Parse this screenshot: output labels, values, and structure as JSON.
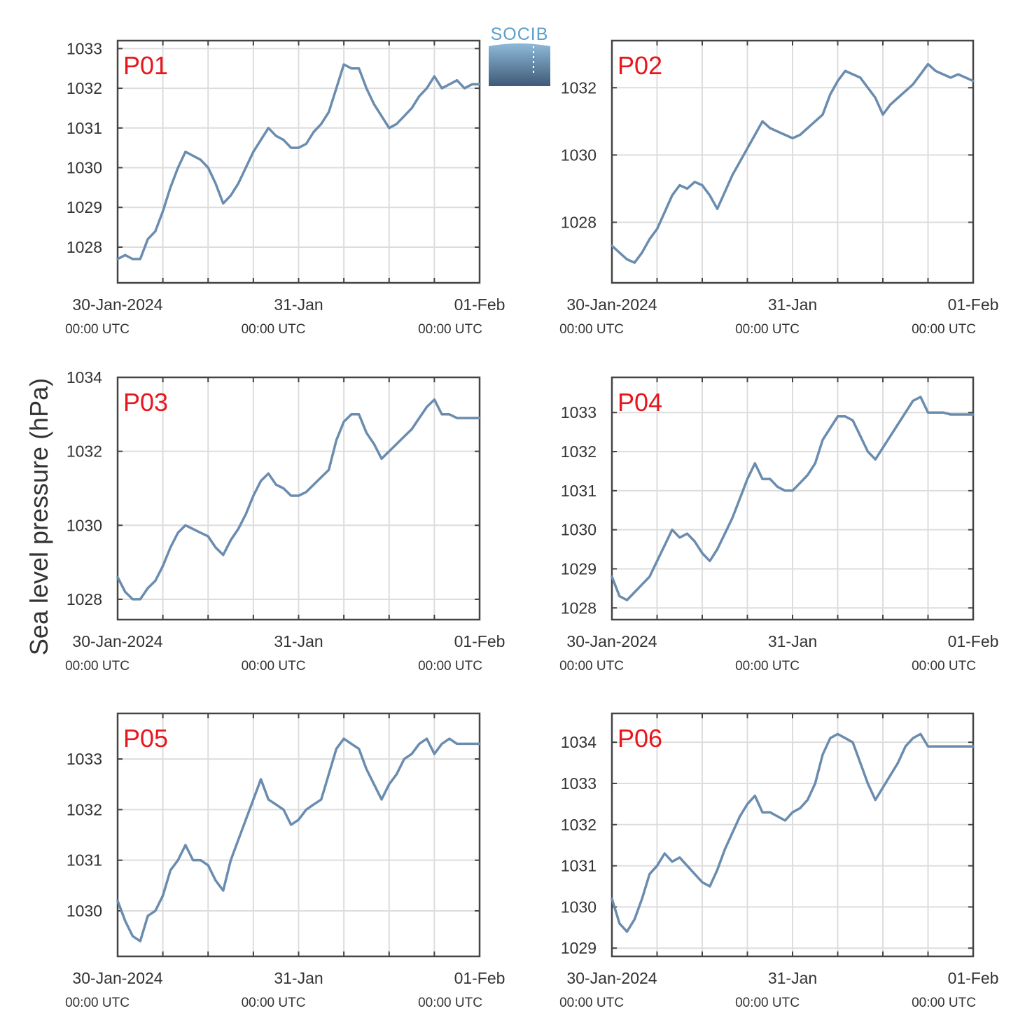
{
  "ylabel": "Sea level pressure (hPa)",
  "logo": {
    "text": "SOCIB"
  },
  "x_ticks": [
    {
      "date": "30-Jan-2024",
      "time": "00:00 UTC",
      "hour": 0
    },
    {
      "date": "31-Jan",
      "time": "00:00 UTC",
      "hour": 24
    },
    {
      "date": "01-Feb",
      "time": "00:00 UTC",
      "hour": 48
    }
  ],
  "colors": {
    "line": "#6a8caf",
    "panel_label": "#e8161d",
    "grid": "#dddddd",
    "axis": "#444444"
  },
  "chart_data": [
    {
      "type": "line",
      "label": "P01",
      "ylim": [
        1027.1,
        1033.2
      ],
      "yticks": [
        1028,
        1029,
        1030,
        1031,
        1032,
        1033
      ],
      "x": [
        0,
        1,
        2,
        3,
        4,
        5,
        6,
        7,
        8,
        9,
        10,
        11,
        12,
        13,
        14,
        15,
        16,
        17,
        18,
        19,
        20,
        21,
        22,
        23,
        24,
        25,
        26,
        27,
        28,
        29,
        30,
        31,
        32,
        33,
        34,
        35,
        36,
        37,
        38,
        39,
        40,
        41,
        42,
        43,
        44,
        45,
        46,
        47,
        48
      ],
      "values": [
        1027.7,
        1027.8,
        1027.7,
        1027.7,
        1028.2,
        1028.4,
        1028.9,
        1029.5,
        1030.0,
        1030.4,
        1030.3,
        1030.2,
        1030.0,
        1029.6,
        1029.1,
        1029.3,
        1029.6,
        1030.0,
        1030.4,
        1030.7,
        1031.0,
        1030.8,
        1030.7,
        1030.5,
        1030.5,
        1030.6,
        1030.9,
        1031.1,
        1031.4,
        1032.0,
        1032.6,
        1032.5,
        1032.5,
        1032.0,
        1031.6,
        1031.3,
        1031.0,
        1031.1,
        1031.3,
        1031.5,
        1031.8,
        1032.0,
        1032.3,
        1032.0,
        1032.1,
        1032.2,
        1032.0,
        1032.1,
        1032.1
      ]
    },
    {
      "type": "line",
      "label": "P02",
      "ylim": [
        1026.2,
        1033.4
      ],
      "yticks": [
        1028,
        1030,
        1032
      ],
      "x": [
        0,
        1,
        2,
        3,
        4,
        5,
        6,
        7,
        8,
        9,
        10,
        11,
        12,
        13,
        14,
        15,
        16,
        17,
        18,
        19,
        20,
        21,
        22,
        23,
        24,
        25,
        26,
        27,
        28,
        29,
        30,
        31,
        32,
        33,
        34,
        35,
        36,
        37,
        38,
        39,
        40,
        41,
        42,
        43,
        44,
        45,
        46,
        47,
        48
      ],
      "values": [
        1027.3,
        1027.1,
        1026.9,
        1026.8,
        1027.1,
        1027.5,
        1027.8,
        1028.3,
        1028.8,
        1029.1,
        1029.0,
        1029.2,
        1029.1,
        1028.8,
        1028.4,
        1028.9,
        1029.4,
        1029.8,
        1030.2,
        1030.6,
        1031.0,
        1030.8,
        1030.7,
        1030.6,
        1030.5,
        1030.6,
        1030.8,
        1031.0,
        1031.2,
        1031.8,
        1032.2,
        1032.5,
        1032.4,
        1032.3,
        1032.0,
        1031.7,
        1031.2,
        1031.5,
        1031.7,
        1031.9,
        1032.1,
        1032.4,
        1032.7,
        1032.5,
        1032.4,
        1032.3,
        1032.4,
        1032.3,
        1032.2
      ]
    },
    {
      "type": "line",
      "label": "P03",
      "ylim": [
        1027.45,
        1034.0
      ],
      "yticks": [
        1028,
        1030,
        1032,
        1034
      ],
      "x": [
        0,
        1,
        2,
        3,
        4,
        5,
        6,
        7,
        8,
        9,
        10,
        11,
        12,
        13,
        14,
        15,
        16,
        17,
        18,
        19,
        20,
        21,
        22,
        23,
        24,
        25,
        26,
        27,
        28,
        29,
        30,
        31,
        32,
        33,
        34,
        35,
        36,
        37,
        38,
        39,
        40,
        41,
        42,
        43,
        44,
        45,
        46,
        47,
        48
      ],
      "values": [
        1028.6,
        1028.2,
        1028.0,
        1028.0,
        1028.3,
        1028.5,
        1028.9,
        1029.4,
        1029.8,
        1030.0,
        1029.9,
        1029.8,
        1029.7,
        1029.4,
        1029.2,
        1029.6,
        1029.9,
        1030.3,
        1030.8,
        1031.2,
        1031.4,
        1031.1,
        1031.0,
        1030.8,
        1030.8,
        1030.9,
        1031.1,
        1031.3,
        1031.5,
        1032.3,
        1032.8,
        1033.0,
        1033.0,
        1032.5,
        1032.2,
        1031.8,
        1032.0,
        1032.2,
        1032.4,
        1032.6,
        1032.9,
        1033.2,
        1033.4,
        1033.0,
        1033.0,
        1032.9,
        1032.9,
        1032.9,
        1032.9
      ]
    },
    {
      "type": "line",
      "label": "P04",
      "ylim": [
        1027.7,
        1033.9
      ],
      "yticks": [
        1028,
        1029,
        1030,
        1031,
        1032,
        1033
      ],
      "x": [
        0,
        1,
        2,
        3,
        4,
        5,
        6,
        7,
        8,
        9,
        10,
        11,
        12,
        13,
        14,
        15,
        16,
        17,
        18,
        19,
        20,
        21,
        22,
        23,
        24,
        25,
        26,
        27,
        28,
        29,
        30,
        31,
        32,
        33,
        34,
        35,
        36,
        37,
        38,
        39,
        40,
        41,
        42,
        43,
        44,
        45,
        46,
        47,
        48
      ],
      "values": [
        1028.8,
        1028.3,
        1028.2,
        1028.4,
        1028.6,
        1028.8,
        1029.2,
        1029.6,
        1030.0,
        1029.8,
        1029.9,
        1029.7,
        1029.4,
        1029.2,
        1029.5,
        1029.9,
        1030.3,
        1030.8,
        1031.3,
        1031.7,
        1031.3,
        1031.3,
        1031.1,
        1031.0,
        1031.0,
        1031.2,
        1031.4,
        1031.7,
        1032.3,
        1032.6,
        1032.9,
        1032.9,
        1032.8,
        1032.4,
        1032.0,
        1031.8,
        1032.1,
        1032.4,
        1032.7,
        1033.0,
        1033.3,
        1033.4,
        1033.0,
        1033.0,
        1033.0,
        1032.95,
        1032.95,
        1032.95,
        1032.95
      ]
    },
    {
      "type": "line",
      "label": "P05",
      "ylim": [
        1029.1,
        1033.9
      ],
      "yticks": [
        1030,
        1031,
        1032,
        1033
      ],
      "x": [
        0,
        1,
        2,
        3,
        4,
        5,
        6,
        7,
        8,
        9,
        10,
        11,
        12,
        13,
        14,
        15,
        16,
        17,
        18,
        19,
        20,
        21,
        22,
        23,
        24,
        25,
        26,
        27,
        28,
        29,
        30,
        31,
        32,
        33,
        34,
        35,
        36,
        37,
        38,
        39,
        40,
        41,
        42,
        43,
        44,
        45,
        46,
        47,
        48
      ],
      "values": [
        1030.2,
        1029.8,
        1029.5,
        1029.4,
        1029.9,
        1030.0,
        1030.3,
        1030.8,
        1031.0,
        1031.3,
        1031.0,
        1031.0,
        1030.9,
        1030.6,
        1030.4,
        1031.0,
        1031.4,
        1031.8,
        1032.2,
        1032.6,
        1032.2,
        1032.1,
        1032.0,
        1031.7,
        1031.8,
        1032.0,
        1032.1,
        1032.2,
        1032.7,
        1033.2,
        1033.4,
        1033.3,
        1033.2,
        1032.8,
        1032.5,
        1032.2,
        1032.5,
        1032.7,
        1033.0,
        1033.1,
        1033.3,
        1033.4,
        1033.1,
        1033.3,
        1033.4,
        1033.3,
        1033.3,
        1033.3,
        1033.3
      ]
    },
    {
      "type": "line",
      "label": "P06",
      "ylim": [
        1028.8,
        1034.7
      ],
      "yticks": [
        1029,
        1030,
        1031,
        1032,
        1033,
        1034
      ],
      "x": [
        0,
        1,
        2,
        3,
        4,
        5,
        6,
        7,
        8,
        9,
        10,
        11,
        12,
        13,
        14,
        15,
        16,
        17,
        18,
        19,
        20,
        21,
        22,
        23,
        24,
        25,
        26,
        27,
        28,
        29,
        30,
        31,
        32,
        33,
        34,
        35,
        36,
        37,
        38,
        39,
        40,
        41,
        42,
        43,
        44,
        45,
        46,
        47,
        48
      ],
      "values": [
        1030.2,
        1029.6,
        1029.4,
        1029.7,
        1030.2,
        1030.8,
        1031.0,
        1031.3,
        1031.1,
        1031.2,
        1031.0,
        1030.8,
        1030.6,
        1030.5,
        1030.9,
        1031.4,
        1031.8,
        1032.2,
        1032.5,
        1032.7,
        1032.3,
        1032.3,
        1032.2,
        1032.1,
        1032.3,
        1032.4,
        1032.6,
        1033.0,
        1033.7,
        1034.1,
        1034.2,
        1034.1,
        1034.0,
        1033.5,
        1033.0,
        1032.6,
        1032.9,
        1033.2,
        1033.5,
        1033.9,
        1034.1,
        1034.2,
        1033.9,
        1033.9,
        1033.9,
        1033.9,
        1033.9,
        1033.9,
        1033.9
      ]
    }
  ]
}
